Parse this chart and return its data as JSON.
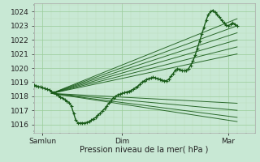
{
  "bg_color": "#c8e8d4",
  "grid_color_major": "#99cc99",
  "grid_color_minor": "#bbddbb",
  "line_color": "#1a5c1a",
  "xlabel": "Pression niveau de la mer( hPa )",
  "yticks": [
    1016,
    1017,
    1018,
    1019,
    1020,
    1021,
    1022,
    1023,
    1024
  ],
  "ylim": [
    1015.4,
    1024.6
  ],
  "xlim": [
    0,
    100
  ],
  "xtick_positions": [
    4,
    40,
    88
  ],
  "xtick_labels": [
    "Samlun",
    "Dim",
    "Mar"
  ],
  "fan_origin_x": 8,
  "fan_origin_y": 1018.2,
  "fan_upper_end_x": 92,
  "fan_upper_targets": [
    1023.5,
    1023.0,
    1022.5,
    1022.0,
    1021.5,
    1021.0
  ],
  "fan_lower_end_x": 92,
  "fan_lower_targets": [
    1017.5,
    1017.0,
    1016.5,
    1016.2
  ],
  "actual_x": [
    0,
    1,
    2,
    3,
    4,
    5,
    6,
    7,
    8,
    9,
    10,
    11,
    12,
    13,
    14,
    15,
    16,
    17,
    18,
    19,
    20,
    21,
    22,
    23,
    24,
    25,
    26,
    27,
    28,
    29,
    30,
    31,
    32,
    33,
    34,
    35,
    36,
    37,
    38,
    39,
    40,
    41,
    42,
    43,
    44,
    45,
    46,
    47,
    48,
    49,
    50,
    51,
    52,
    53,
    54,
    55,
    56,
    57,
    58,
    59,
    60,
    61,
    62,
    63,
    64,
    65,
    66,
    67,
    68,
    69,
    70,
    71,
    72,
    73,
    74,
    75,
    76,
    77,
    78,
    79,
    80,
    81,
    82,
    83,
    84,
    85,
    86,
    87,
    88,
    89,
    90,
    91,
    92
  ],
  "actual_y": [
    1018.8,
    1018.75,
    1018.7,
    1018.65,
    1018.6,
    1018.55,
    1018.5,
    1018.45,
    1018.35,
    1018.25,
    1018.15,
    1018.05,
    1017.95,
    1017.85,
    1017.75,
    1017.65,
    1017.55,
    1017.3,
    1016.8,
    1016.3,
    1016.1,
    1016.1,
    1016.1,
    1016.1,
    1016.15,
    1016.2,
    1016.3,
    1016.4,
    1016.5,
    1016.65,
    1016.8,
    1016.95,
    1017.1,
    1017.3,
    1017.5,
    1017.7,
    1017.9,
    1018.0,
    1018.1,
    1018.15,
    1018.2,
    1018.25,
    1018.3,
    1018.35,
    1018.4,
    1018.5,
    1018.6,
    1018.7,
    1018.85,
    1019.0,
    1019.1,
    1019.2,
    1019.25,
    1019.3,
    1019.35,
    1019.3,
    1019.25,
    1019.2,
    1019.15,
    1019.1,
    1019.1,
    1019.2,
    1019.4,
    1019.6,
    1019.85,
    1019.95,
    1019.9,
    1019.85,
    1019.8,
    1019.85,
    1019.95,
    1020.2,
    1020.5,
    1020.9,
    1021.4,
    1021.9,
    1022.4,
    1022.9,
    1023.4,
    1023.8,
    1024.0,
    1024.1,
    1023.95,
    1023.8,
    1023.6,
    1023.4,
    1023.2,
    1023.05,
    1023.0,
    1023.1,
    1023.2,
    1023.1,
    1023.0
  ]
}
